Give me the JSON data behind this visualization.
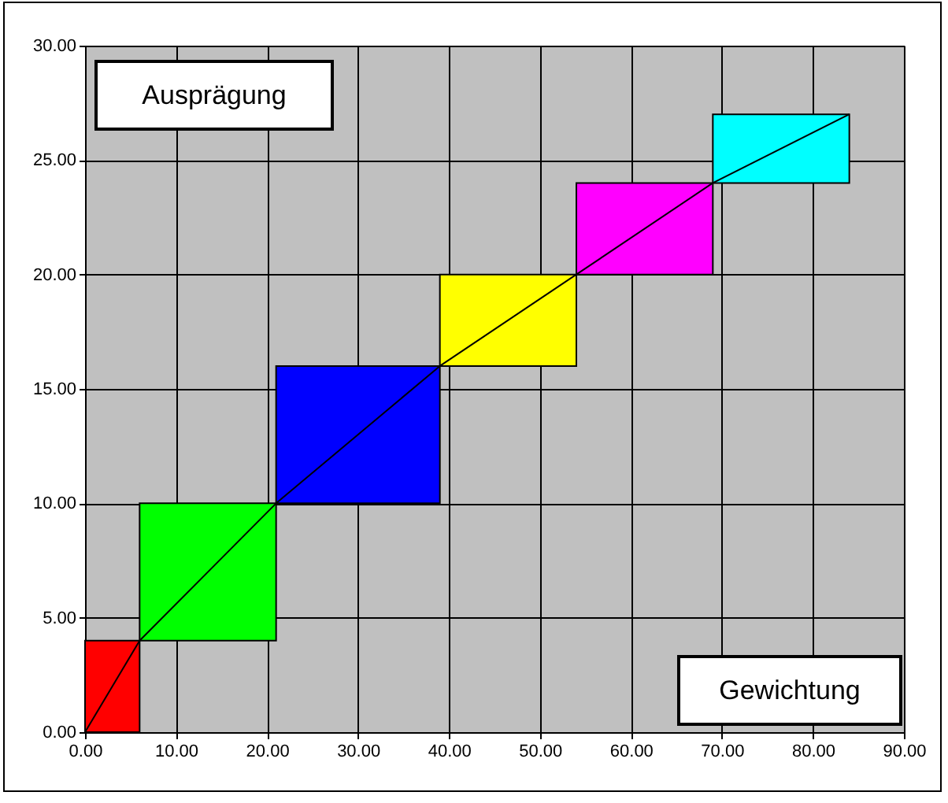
{
  "chart_data": {
    "type": "line",
    "xlabel": "Gewichtung",
    "ylabel": "Ausprägung",
    "x": [
      0,
      6,
      21,
      39,
      54,
      69,
      84
    ],
    "series": [
      {
        "type": "bar",
        "x": [
          3,
          13.5,
          30,
          46.5,
          61.5,
          76.5
        ],
        "base": [
          0,
          4,
          10,
          16,
          20,
          24
        ],
        "values": [
          4,
          6,
          6,
          4,
          4,
          3
        ],
        "colors": [
          "#ff0000",
          "#00ff00",
          "#0000ff",
          "#ffff00",
          "#ff00ff",
          "#00ffff"
        ]
      },
      {
        "color": "#000000",
        "values": [
          0,
          4,
          10,
          16,
          20,
          24,
          27
        ]
      }
    ],
    "xlim": [
      0,
      90
    ],
    "ylim": [
      0,
      30
    ],
    "xticks": [
      {
        "value": 0,
        "label": "0.00"
      },
      {
        "value": 10,
        "label": "10.00"
      },
      {
        "value": 20,
        "label": "20.00"
      },
      {
        "value": 30,
        "label": "30.00"
      },
      {
        "value": 40,
        "label": "40.00"
      },
      {
        "value": 50,
        "label": "50.00"
      },
      {
        "value": 60,
        "label": "60.00"
      },
      {
        "value": 70,
        "label": "70.00"
      },
      {
        "value": 80,
        "label": "80.00"
      },
      {
        "value": 90,
        "label": "90.00"
      }
    ],
    "yticks": [
      {
        "value": 0,
        "label": "0.00"
      },
      {
        "value": 5,
        "label": "5.00"
      },
      {
        "value": 10,
        "label": "10.00"
      },
      {
        "value": 15,
        "label": "15.00"
      },
      {
        "value": 20,
        "label": "20.00"
      },
      {
        "value": 25,
        "label": "25.00"
      },
      {
        "value": 30,
        "label": "30.00"
      }
    ],
    "grid": true
  }
}
